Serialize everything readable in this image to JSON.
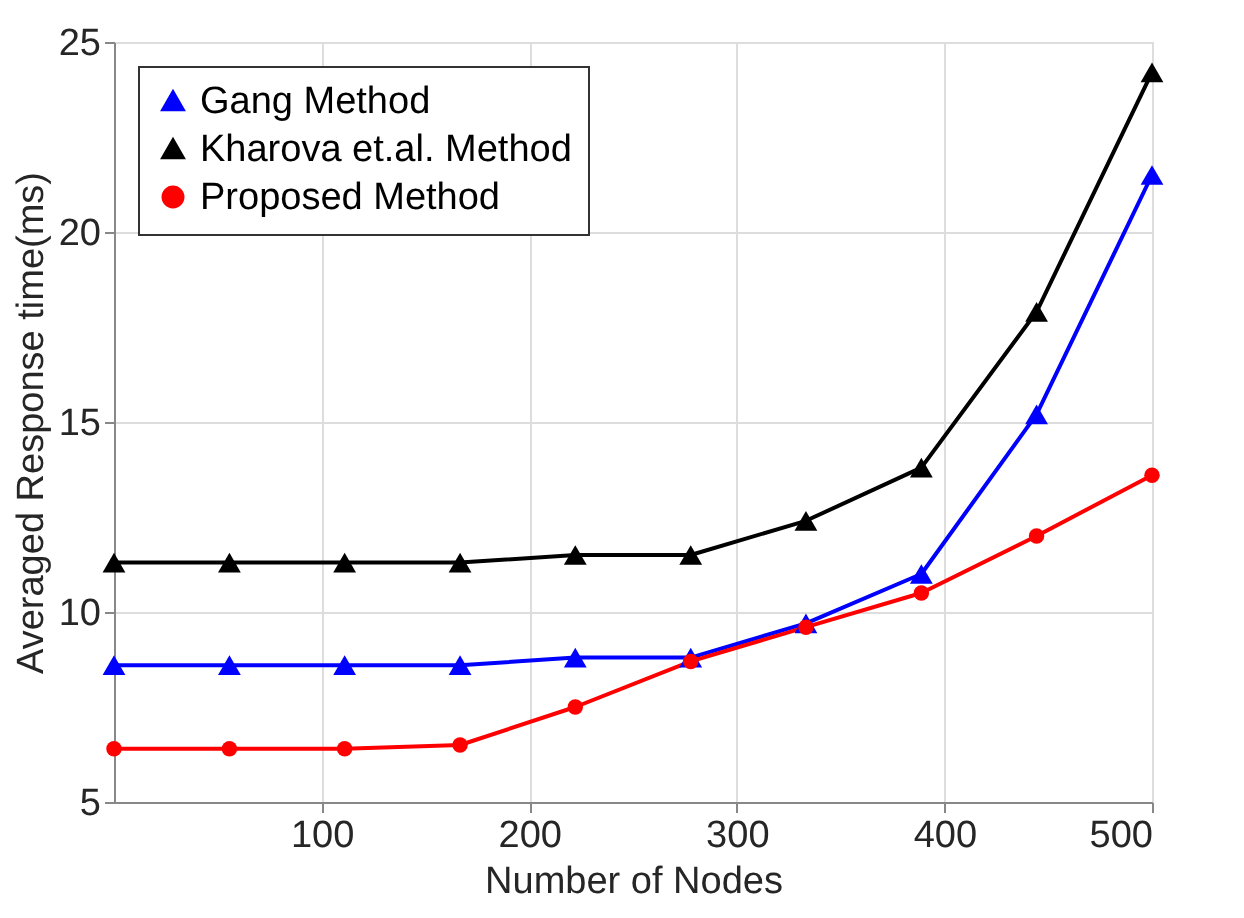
{
  "chart_data": {
    "type": "line",
    "xlabel": "Number of Nodes",
    "ylabel": "Averaged Response time(ms)",
    "x": [
      0,
      55.6,
      111.1,
      166.7,
      222.2,
      277.8,
      333.3,
      388.9,
      444.4,
      500
    ],
    "series": [
      {
        "name": "Gang Method",
        "color": "#0000ff",
        "marker": "triangle",
        "values": [
          8.6,
          8.6,
          8.6,
          8.6,
          8.8,
          8.8,
          9.7,
          11.0,
          15.2,
          21.5
        ]
      },
      {
        "name": "Kharova et.al. Method",
        "color": "#000000",
        "marker": "triangle",
        "values": [
          11.3,
          11.3,
          11.3,
          11.3,
          11.5,
          11.5,
          12.4,
          13.8,
          17.9,
          24.2
        ]
      },
      {
        "name": "Proposed Method",
        "color": "#ff0000",
        "marker": "circle",
        "values": [
          6.4,
          6.4,
          6.4,
          6.5,
          7.5,
          8.7,
          9.6,
          10.5,
          12.0,
          13.6
        ]
      }
    ],
    "xlim": [
      0,
      500
    ],
    "xticks": [
      100,
      200,
      300,
      400,
      500
    ],
    "ylim": [
      5,
      25
    ],
    "yticks": [
      5,
      10,
      15,
      20,
      25
    ],
    "grid": true,
    "legend": "top left",
    "line_style": "solid"
  }
}
